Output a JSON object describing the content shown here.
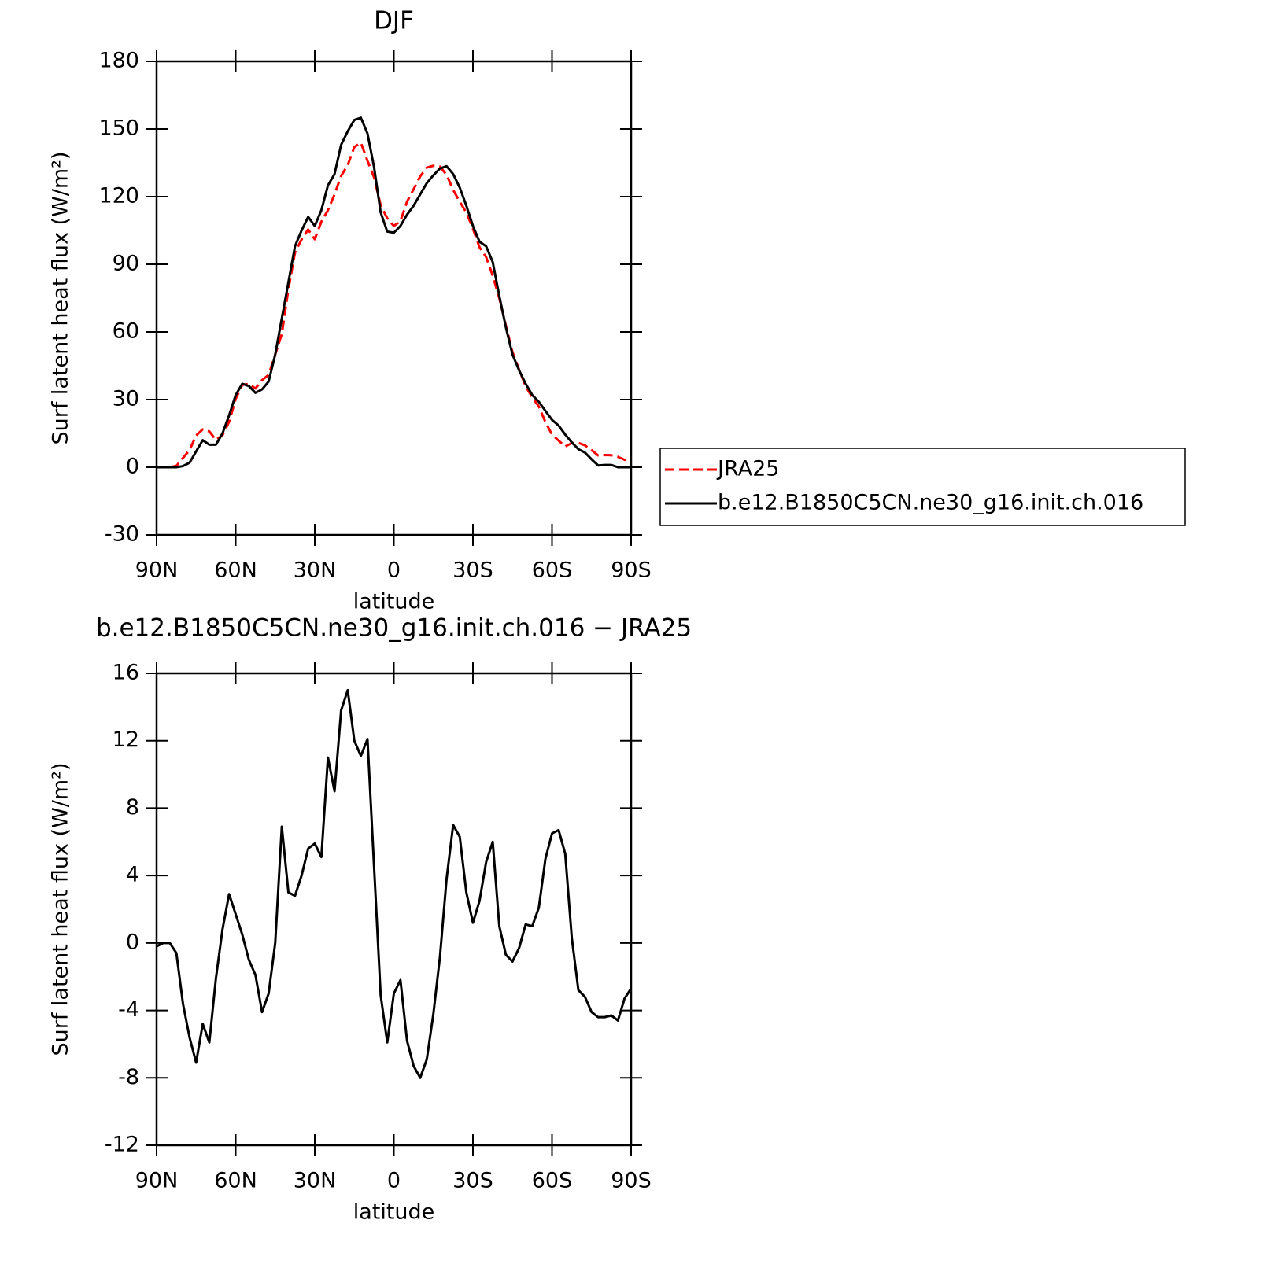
{
  "chart_data": [
    {
      "type": "line",
      "title": "DJF",
      "y_label": "Surf latent heat flux (W/m²)",
      "x_label": "latitude",
      "x": [
        90,
        87.5,
        85,
        82.5,
        80,
        77.5,
        75,
        72.5,
        70,
        67.5,
        65,
        62.5,
        60,
        57.5,
        55,
        52.5,
        50,
        47.5,
        45,
        42.5,
        40,
        37.5,
        35,
        32.5,
        30,
        27.5,
        25,
        22.5,
        20,
        17.5,
        15,
        12.5,
        10,
        7.5,
        5,
        2.5,
        0,
        -2.5,
        -5,
        -7.5,
        -10,
        -12.5,
        -15,
        -17.5,
        -20,
        -22.5,
        -25,
        -27.5,
        -30,
        -32.5,
        -35,
        -37.5,
        -40,
        -42.5,
        -45,
        -47.5,
        -50,
        -52.5,
        -55,
        -57.5,
        -60,
        -62.5,
        -65,
        -67.5,
        -70,
        -72.5,
        -75,
        -77.5,
        -80,
        -82.5,
        -85,
        -87.5,
        -90
      ],
      "xlim": [
        90,
        -90
      ],
      "xticks": [
        {
          "value": 90,
          "label": "90N"
        },
        {
          "value": 60,
          "label": "60N"
        },
        {
          "value": 30,
          "label": "30N"
        },
        0,
        {
          "value": -30,
          "label": "30S"
        },
        {
          "value": -60,
          "label": "60S"
        },
        {
          "value": -90,
          "label": "90S"
        }
      ],
      "ylim": [
        -30,
        180
      ],
      "yticks": [
        -30,
        0,
        30,
        60,
        90,
        120,
        150,
        180
      ],
      "legend": "right",
      "series": [
        {
          "name": "JRA25",
          "color": "#ff0000",
          "dashed": true,
          "values": [
            0.2,
            0,
            0,
            0.6,
            4.1,
            7.6,
            14.1,
            16.8,
            15.9,
            12.1,
            14.2,
            20.1,
            30.3,
            36.5,
            37,
            34.9,
            38.6,
            41,
            50,
            59.1,
            79,
            95.2,
            101,
            105.4,
            101.1,
            108.9,
            114,
            121,
            129.2,
            134,
            142,
            143.9,
            135.9,
            128.5,
            116.1,
            110.4,
            107,
            109.2,
            117.8,
            123.3,
            129,
            132.9,
            133.7,
            133.3,
            129.7,
            123,
            117.7,
            113,
            105.8,
            97.5,
            93.2,
            85,
            75,
            62.7,
            51.1,
            43.3,
            35.9,
            31,
            26.9,
            20,
            14.5,
            11.8,
            9.2,
            10.7,
            10.8,
            9.7,
            7.6,
            5.2,
            5.4,
            5.3,
            4.6,
            3.3,
            2.7
          ]
        },
        {
          "name": "b.e12.B1850C5CN.ne30_g16.init.ch.016",
          "color": "#000000",
          "dashed": false,
          "values": [
            0,
            0,
            0,
            0,
            0.5,
            2,
            7,
            12,
            10,
            10,
            15,
            23,
            32,
            37,
            36,
            33,
            34.5,
            38,
            50,
            66,
            82,
            98,
            105,
            111,
            107,
            114,
            125,
            130,
            143,
            149,
            154,
            155,
            148,
            133,
            113,
            104.5,
            104,
            107,
            112,
            116,
            121,
            126,
            129.5,
            132.5,
            133.5,
            130,
            124,
            116,
            107,
            100,
            98,
            91,
            76,
            62,
            50,
            43,
            37,
            32,
            29,
            25,
            21,
            18.5,
            14.5,
            11,
            8,
            6.5,
            3.5,
            0.8,
            1,
            1,
            0,
            0,
            0
          ]
        }
      ]
    },
    {
      "type": "line",
      "title": "b.e12.B1850C5CN.ne30_g16.init.ch.016 − JRA25",
      "y_label": "Surf latent heat flux (W/m²)",
      "x_label": "latitude",
      "x": [
        90,
        87.5,
        85,
        82.5,
        80,
        77.5,
        75,
        72.5,
        70,
        67.5,
        65,
        62.5,
        60,
        57.5,
        55,
        52.5,
        50,
        47.5,
        45,
        42.5,
        40,
        37.5,
        35,
        32.5,
        30,
        27.5,
        25,
        22.5,
        20,
        17.5,
        15,
        12.5,
        10,
        7.5,
        5,
        2.5,
        0,
        -2.5,
        -5,
        -7.5,
        -10,
        -12.5,
        -15,
        -17.5,
        -20,
        -22.5,
        -25,
        -27.5,
        -30,
        -32.5,
        -35,
        -37.5,
        -40,
        -42.5,
        -45,
        -47.5,
        -50,
        -52.5,
        -55,
        -57.5,
        -60,
        -62.5,
        -65,
        -67.5,
        -70,
        -72.5,
        -75,
        -77.5,
        -80,
        -82.5,
        -85,
        -87.5,
        -90
      ],
      "xlim": [
        90,
        -90
      ],
      "xticks": [
        {
          "value": 90,
          "label": "90N"
        },
        {
          "value": 60,
          "label": "60N"
        },
        {
          "value": 30,
          "label": "30N"
        },
        0,
        {
          "value": -30,
          "label": "30S"
        },
        {
          "value": -60,
          "label": "60S"
        },
        {
          "value": -90,
          "label": "90S"
        }
      ],
      "ylim": [
        -12,
        16
      ],
      "yticks": [
        -12,
        -8,
        -4,
        0,
        4,
        8,
        12,
        16
      ],
      "series": [
        {
          "color": "#000000",
          "dashed": false,
          "values": [
            -0.2,
            0,
            0,
            -0.6,
            -3.6,
            -5.6,
            -7.1,
            -4.8,
            -5.9,
            -2.1,
            0.8,
            2.9,
            1.7,
            0.5,
            -1,
            -1.9,
            -4.1,
            -3,
            0,
            6.9,
            3,
            2.8,
            4,
            5.6,
            5.9,
            5.1,
            11,
            9,
            13.8,
            15,
            12,
            11.1,
            12.1,
            4.5,
            -3.1,
            -5.9,
            -3,
            -2.2,
            -5.8,
            -7.3,
            -8,
            -6.9,
            -4.2,
            -0.8,
            3.8,
            7,
            6.3,
            3,
            1.2,
            2.5,
            4.8,
            6,
            1,
            -0.7,
            -1.1,
            -0.3,
            1.1,
            1,
            2.1,
            5,
            6.5,
            6.7,
            5.3,
            0.3,
            -2.8,
            -3.2,
            -4.1,
            -4.4,
            -4.4,
            -4.3,
            -4.6,
            -3.3,
            -2.7
          ]
        }
      ]
    }
  ]
}
